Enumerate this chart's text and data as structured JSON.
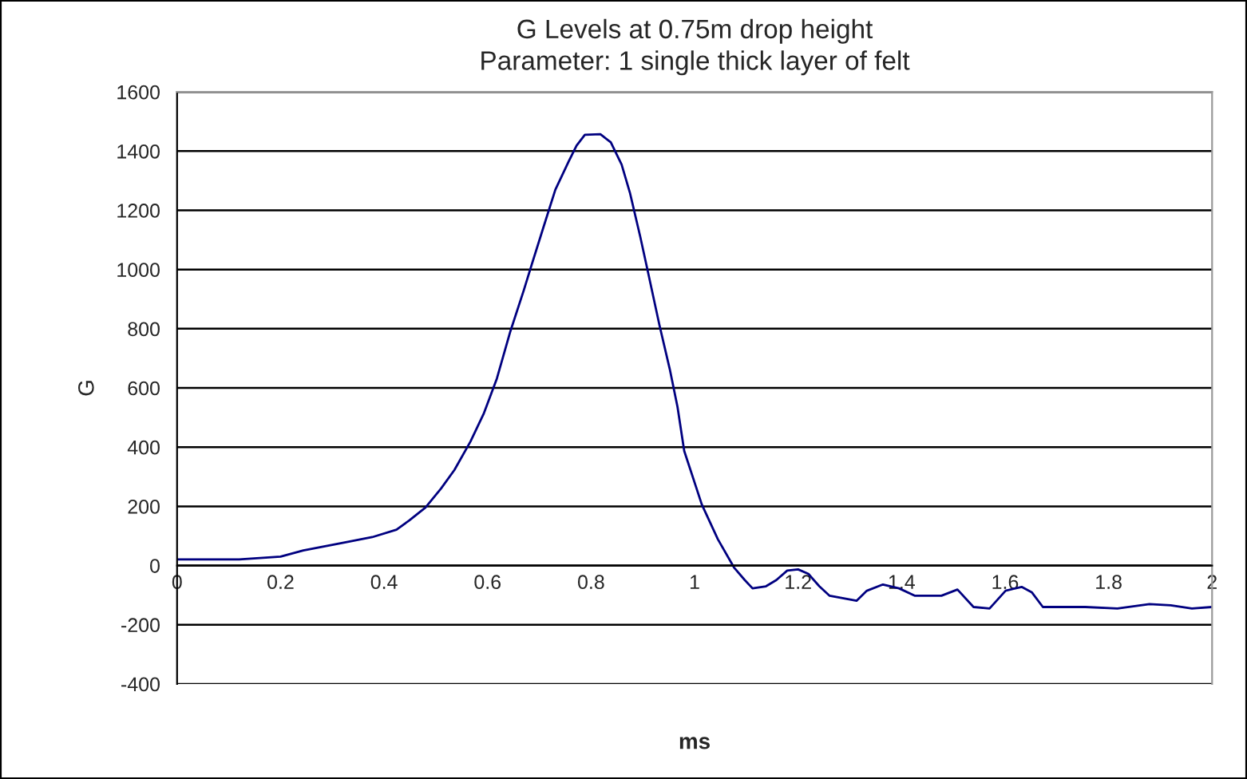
{
  "chart_data": {
    "type": "line",
    "title": "G Levels at 0.75m drop height\nParameter: 1 single thick layer of felt",
    "xlabel": "ms",
    "ylabel": "G",
    "series": [
      {
        "color": "#000080",
        "x": [
          0,
          0.12,
          0.2,
          0.244,
          0.326,
          0.377,
          0.424,
          0.449,
          0.48,
          0.51,
          0.536,
          0.567,
          0.593,
          0.618,
          0.644,
          0.67,
          0.685,
          0.706,
          0.731,
          0.757,
          0.772,
          0.788,
          0.818,
          0.838,
          0.859,
          0.875,
          0.895,
          0.911,
          0.932,
          0.952,
          0.967,
          0.98,
          1.014,
          1.045,
          1.076,
          1.097,
          1.112,
          1.138,
          1.158,
          1.179,
          1.2,
          1.22,
          1.241,
          1.261,
          1.313,
          1.333,
          1.364,
          1.395,
          1.426,
          1.477,
          1.508,
          1.539,
          1.57,
          1.601,
          1.632,
          1.652,
          1.673,
          1.755,
          1.817,
          1.879,
          1.92,
          1.961,
          2.0
        ],
        "values": [
          21,
          21,
          30,
          51,
          79,
          96,
          121,
          153,
          196,
          260,
          323,
          419,
          515,
          632,
          791,
          930,
          1015,
          1132,
          1270,
          1366,
          1419,
          1455,
          1457,
          1430,
          1355,
          1260,
          1111,
          983,
          813,
          664,
          536,
          387,
          206,
          89,
          -6,
          -49,
          -77,
          -70,
          -49,
          -17,
          -13,
          -28,
          -70,
          -102,
          -119,
          -85,
          -64,
          -77,
          -102,
          -102,
          -81,
          -140,
          -145,
          -85,
          -72,
          -91,
          -140,
          -140,
          -145,
          -130,
          -134,
          -145,
          -140
        ]
      }
    ],
    "xlim": [
      0,
      2
    ],
    "xticks": [
      0,
      0.2,
      0.4,
      0.6,
      0.8,
      1,
      1.2,
      1.4,
      1.6,
      1.8,
      2
    ],
    "ylim": [
      -400,
      1600
    ],
    "yticks": [
      -400,
      -200,
      0,
      200,
      400,
      600,
      800,
      1000,
      1200,
      1400,
      1600
    ],
    "grid": "y",
    "marker": "none",
    "line_style": "solid"
  }
}
